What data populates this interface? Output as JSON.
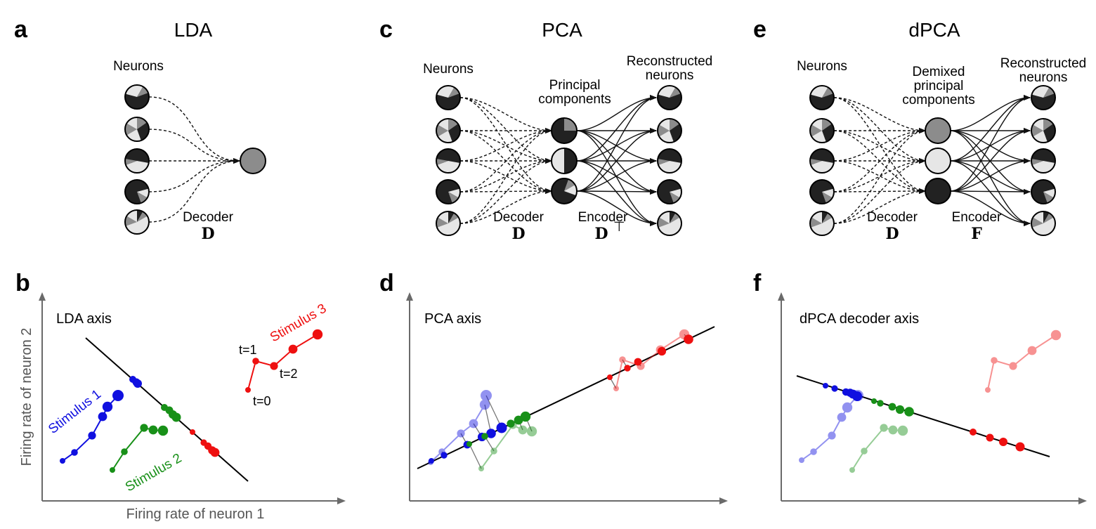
{
  "panels": {
    "a": {
      "letter": "a",
      "title": "LDA",
      "neurons_label": "Neurons",
      "decoder_label": "Decoder",
      "decoder_symbol": "D"
    },
    "b": {
      "letter": "b",
      "axis_label": "LDA axis",
      "xlabel": "Firing rate of neuron 1",
      "ylabel": "Firing rate of neuron 2",
      "stimuli": [
        "Stimulus 1",
        "Stimulus 2",
        "Stimulus 3"
      ],
      "time_labels": [
        "t=0",
        "t=1",
        "t=2"
      ]
    },
    "c": {
      "letter": "c",
      "title": "PCA",
      "neurons_label": "Neurons",
      "components_label_1": "Principal",
      "components_label_2": "components",
      "recon_label_1": "Reconstructed",
      "recon_label_2": "neurons",
      "decoder_label": "Decoder",
      "decoder_symbol": "D",
      "encoder_label": "Encoder",
      "encoder_symbol": "D",
      "encoder_superscript": "⊤"
    },
    "d": {
      "letter": "d",
      "axis_label": "PCA axis"
    },
    "e": {
      "letter": "e",
      "title": "dPCA",
      "neurons_label": "Neurons",
      "components_label_1": "Demixed",
      "components_label_2": "principal",
      "components_label_3": "components",
      "recon_label_1": "Reconstructed",
      "recon_label_2": "neurons",
      "decoder_label": "Decoder",
      "decoder_symbol": "D",
      "encoder_label": "Encoder",
      "encoder_symbol": "F"
    },
    "f": {
      "letter": "f",
      "axis_label": "dPCA decoder axis"
    }
  },
  "colors": {
    "stimulus_1": "#1010e0",
    "stimulus_2": "#189018",
    "stimulus_3": "#ee1010",
    "dark": "#222222",
    "mid": "#8c8c8c",
    "light": "#e6e6e6",
    "axis": "#6a6a6a"
  }
}
